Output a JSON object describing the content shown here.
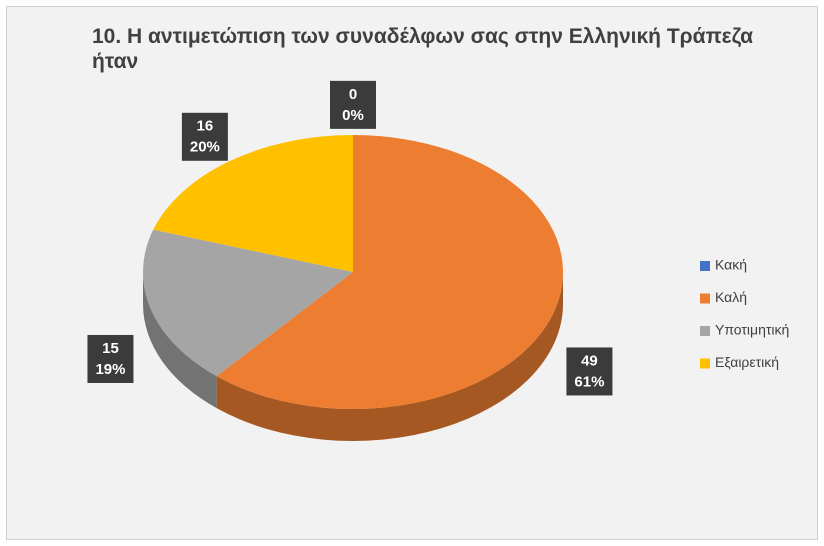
{
  "chart_data": {
    "type": "pie3d",
    "title": "10. Η αντιμετώπιση των συναδέλφων σας στην Ελληνική Τράπεζα ήταν",
    "categories": [
      "Κακή",
      "Καλή",
      "Υποτιμητική",
      "Εξαιρετική"
    ],
    "values": [
      0,
      49,
      15,
      16
    ],
    "percent_labels": [
      "0%",
      "61%",
      "19%",
      "20%"
    ],
    "colors": [
      "#4472c4",
      "#ed7d31",
      "#a5a5a5",
      "#ffc000"
    ],
    "legend": "right"
  }
}
